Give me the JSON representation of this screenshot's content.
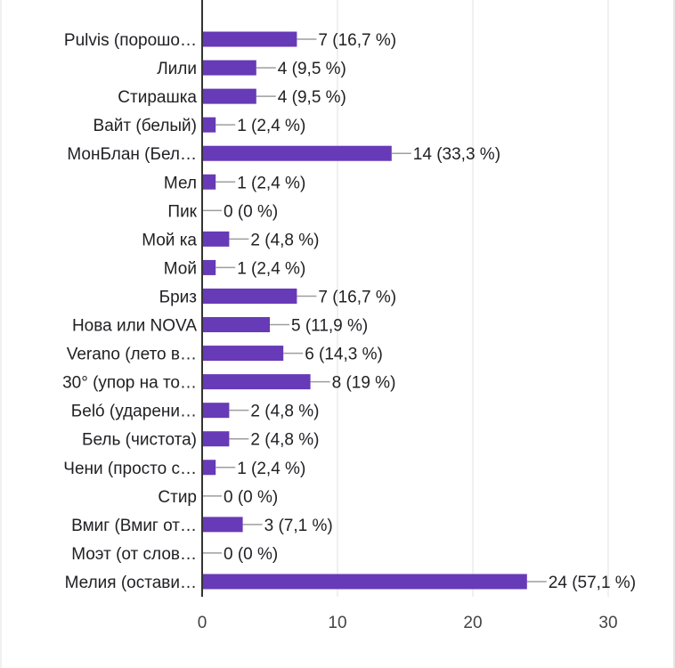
{
  "chart_data": {
    "type": "bar",
    "orientation": "horizontal",
    "categories": [
      "Pulvis (порошо…",
      "Лили",
      "Стирашка",
      "Вайт (белый)",
      "МонБлан (Бел…",
      "Мел",
      "Пик",
      "Мой ка",
      "Мой",
      "Бриз",
      "Нова или NOVA",
      "Verano (лето в…",
      "30° (упор на то…",
      "Беló (ударени…",
      "Бель (чистота)",
      "Чени (просто с…",
      "Стир",
      "Вмиг (Вмиг от…",
      "Моэт (от слов…",
      "Мелия (остави…"
    ],
    "values": [
      7,
      4,
      4,
      1,
      14,
      1,
      0,
      2,
      1,
      7,
      5,
      6,
      8,
      2,
      2,
      1,
      0,
      3,
      0,
      24
    ],
    "value_labels": [
      "7 (16,7 %)",
      "4 (9,5 %)",
      "4 (9,5 %)",
      "1 (2,4 %)",
      "14 (33,3 %)",
      "1 (2,4 %)",
      "0 (0 %)",
      "2 (4,8 %)",
      "1 (2,4 %)",
      "7 (16,7 %)",
      "5 (11,9 %)",
      "6 (14,3 %)",
      "8 (19 %)",
      "2 (4,8 %)",
      "2 (4,8 %)",
      "1 (2,4 %)",
      "0 (0 %)",
      "3 (7,1 %)",
      "0 (0 %)",
      "24 (57,1 %)"
    ],
    "xlim": [
      0,
      30
    ],
    "xticks": [
      0,
      10,
      20,
      30
    ],
    "xtick_labels": [
      "0",
      "10",
      "20",
      "30"
    ],
    "grid": true,
    "bar_color": "#673ab7",
    "leader_color": "#9e9e9e"
  }
}
